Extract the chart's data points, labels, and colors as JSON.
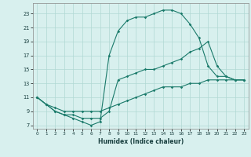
{
  "xlabel": "Humidex (Indice chaleur)",
  "bg_color": "#d8f0ee",
  "grid_color": "#b0d8d4",
  "line_color": "#1a7a6a",
  "xlim": [
    -0.5,
    23.5
  ],
  "ylim": [
    6.5,
    24.5
  ],
  "yticks": [
    7,
    9,
    11,
    13,
    15,
    17,
    19,
    21,
    23
  ],
  "xticks": [
    0,
    1,
    2,
    3,
    4,
    5,
    6,
    7,
    8,
    9,
    10,
    11,
    12,
    13,
    14,
    15,
    16,
    17,
    18,
    19,
    20,
    21,
    22,
    23
  ],
  "line1_x": [
    0,
    1,
    2,
    3,
    4,
    5,
    6,
    7,
    8,
    9,
    10,
    11,
    12,
    13,
    14,
    15,
    16,
    17,
    18,
    19,
    20,
    21,
    22,
    23
  ],
  "line1_y": [
    11,
    10,
    9,
    8.5,
    8,
    7.5,
    7,
    7.5,
    17,
    20.5,
    22,
    22.5,
    22.5,
    23,
    23.5,
    23.5,
    23,
    21.5,
    19.5,
    15.5,
    14,
    14,
    13.5,
    13.5
  ],
  "line2_x": [
    0,
    1,
    2,
    3,
    4,
    5,
    6,
    7,
    8,
    9,
    10,
    11,
    12,
    13,
    14,
    15,
    16,
    17,
    18,
    19,
    20,
    21,
    22,
    23
  ],
  "line2_y": [
    11,
    10,
    9,
    8.5,
    8.5,
    8,
    8,
    8,
    9,
    13.5,
    14,
    14.5,
    15,
    15,
    15.5,
    16,
    16.5,
    17.5,
    18,
    19,
    15.5,
    14,
    13.5,
    13.5
  ],
  "line3_x": [
    0,
    1,
    2,
    3,
    4,
    5,
    6,
    7,
    8,
    9,
    10,
    11,
    12,
    13,
    14,
    15,
    16,
    17,
    18,
    19,
    20,
    21,
    22,
    23
  ],
  "line3_y": [
    11,
    10,
    9.5,
    9,
    9,
    9,
    9,
    9,
    9.5,
    10,
    10.5,
    11,
    11.5,
    12,
    12.5,
    12.5,
    12.5,
    13,
    13,
    13.5,
    13.5,
    13.5,
    13.5,
    13.5
  ]
}
